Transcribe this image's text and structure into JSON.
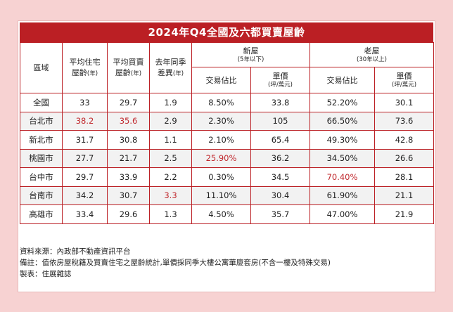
{
  "title": "2024年Q4全國及六都買賣屋齡",
  "headers": {
    "region": "區域",
    "avg_residential_age_line1": "平均住宅",
    "avg_residential_age_line2": "屋齡",
    "avg_residential_age_unit": "(年)",
    "avg_transaction_age_line1": "平均買賣",
    "avg_transaction_age_line2": "屋齡",
    "avg_transaction_age_unit": "(年)",
    "yoy_diff_line1": "去年同季",
    "yoy_diff_line2": "差異",
    "yoy_diff_unit": "(年)",
    "new_house": "新屋",
    "new_house_note": "(5年以下)",
    "old_house": "老屋",
    "old_house_note": "(30年以上)",
    "share": "交易佔比",
    "unit_price": "單價",
    "unit_price_note": "(坪/萬元)"
  },
  "rows": [
    {
      "region": "全國",
      "avg_res_age": "33",
      "avg_txn_age": "29.7",
      "yoy": "1.9",
      "new_share": "8.50%",
      "new_price": "33.8",
      "old_share": "52.20%",
      "old_price": "30.1"
    },
    {
      "region": "台北市",
      "avg_res_age": "38.2",
      "avg_txn_age": "35.6",
      "yoy": "2.9",
      "new_share": "2.30%",
      "new_price": "105",
      "old_share": "66.50%",
      "old_price": "73.6"
    },
    {
      "region": "新北市",
      "avg_res_age": "31.7",
      "avg_txn_age": "30.8",
      "yoy": "1.1",
      "new_share": "2.10%",
      "new_price": "65.4",
      "old_share": "49.30%",
      "old_price": "42.8"
    },
    {
      "region": "桃園市",
      "avg_res_age": "27.7",
      "avg_txn_age": "21.7",
      "yoy": "2.5",
      "new_share": "25.90%",
      "new_price": "36.2",
      "old_share": "34.50%",
      "old_price": "26.6"
    },
    {
      "region": "台中市",
      "avg_res_age": "29.7",
      "avg_txn_age": "33.9",
      "yoy": "2.2",
      "new_share": "0.30%",
      "new_price": "34.5",
      "old_share": "70.40%",
      "old_price": "28.1"
    },
    {
      "region": "台南市",
      "avg_res_age": "34.2",
      "avg_txn_age": "30.7",
      "yoy": "3.3",
      "new_share": "11.10%",
      "new_price": "30.4",
      "old_share": "61.90%",
      "old_price": "21.1"
    },
    {
      "region": "高雄市",
      "avg_res_age": "33.4",
      "avg_txn_age": "29.6",
      "yoy": "1.3",
      "new_share": "4.50%",
      "new_price": "35.7",
      "old_share": "47.00%",
      "old_price": "21.9"
    }
  ],
  "notes": {
    "source": "資料來源：內政部不動產資訊平台",
    "remark": "備註：值依房屋稅籍及買賣住宅之屋齡統計,單價採同季大樓公寓華廈套房(不含一樓及特殊交易)",
    "made_by": "製表：住展雜誌"
  },
  "colors": {
    "background": "#f7d2d2",
    "title_bar": "#bb1f24",
    "highlight": "#c0282d",
    "border": "#bb1f24"
  }
}
